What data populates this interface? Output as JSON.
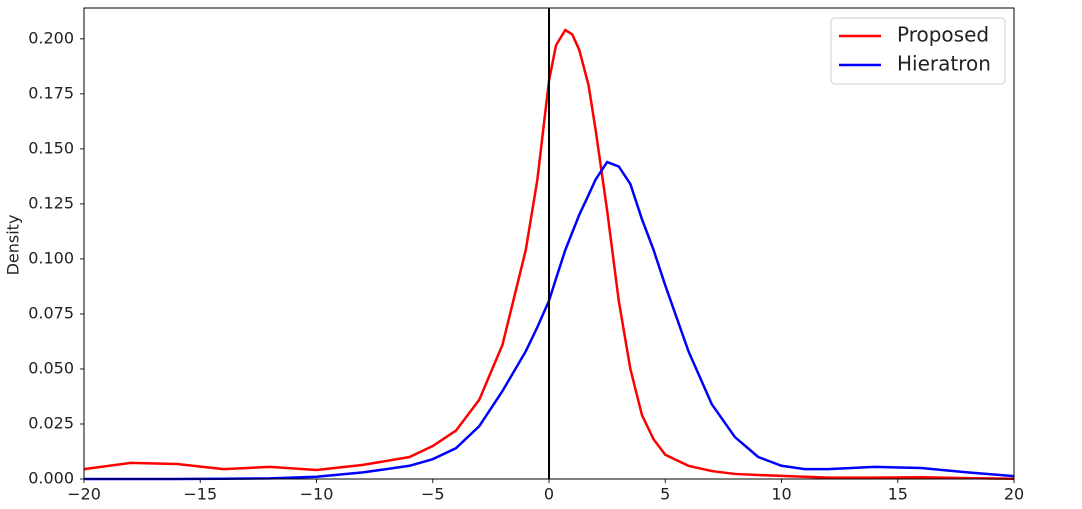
{
  "chart_data": {
    "type": "line",
    "ylabel": "Density",
    "x": [
      -20,
      -18,
      -16,
      -14,
      -12,
      -10,
      -8,
      -6,
      -5,
      -4,
      -3,
      -2,
      -1,
      -0.5,
      0,
      0.3,
      0.7,
      1,
      1.3,
      1.7,
      2,
      2.5,
      3,
      3.5,
      4,
      4.5,
      5,
      6,
      7,
      8,
      9,
      10,
      11,
      12,
      14,
      16,
      18,
      20
    ],
    "series": [
      {
        "name": "Proposed",
        "color": "#ff0000",
        "values": [
          0.0045,
          0.0073,
          0.0068,
          0.0045,
          0.0055,
          0.0041,
          0.0064,
          0.01,
          0.015,
          0.022,
          0.036,
          0.061,
          0.104,
          0.136,
          0.181,
          0.197,
          0.204,
          0.202,
          0.195,
          0.179,
          0.159,
          0.122,
          0.081,
          0.05,
          0.029,
          0.018,
          0.011,
          0.006,
          0.0036,
          0.0023,
          0.0018,
          0.0014,
          0.001,
          0.0006,
          0.0006,
          0.0008,
          0.0004,
          0.0001
        ]
      },
      {
        "name": "Hieratron",
        "color": "#0000ff",
        "values": [
          0,
          0,
          0,
          0.0001,
          0.0003,
          0.001,
          0.003,
          0.006,
          0.009,
          0.014,
          0.024,
          0.04,
          0.058,
          0.069,
          0.081,
          0.091,
          0.104,
          0.112,
          0.12,
          0.129,
          0.136,
          0.144,
          0.142,
          0.134,
          0.118,
          0.104,
          0.088,
          0.058,
          0.034,
          0.019,
          0.01,
          0.006,
          0.0045,
          0.0045,
          0.0055,
          0.005,
          0.003,
          0.0013
        ]
      }
    ],
    "xlim": [
      -20,
      20
    ],
    "xticks": [
      {
        "value": -20,
        "label": "−20"
      },
      {
        "value": -15,
        "label": "−15"
      },
      {
        "value": -10,
        "label": "−10"
      },
      {
        "value": -5,
        "label": "−5"
      },
      0,
      5,
      10,
      15,
      20
    ],
    "ylim": [
      0,
      0.214
    ],
    "yticks": [
      {
        "value": 0,
        "label": "0.000"
      },
      0.025,
      {
        "value": 0.05,
        "label": "0.050"
      },
      0.075,
      {
        "value": 0.1,
        "label": "0.100"
      },
      0.125,
      {
        "value": 0.15,
        "label": "0.150"
      },
      0.175,
      {
        "value": 0.2,
        "label": "0.200"
      }
    ],
    "vline": 0,
    "legend": "upper right"
  }
}
